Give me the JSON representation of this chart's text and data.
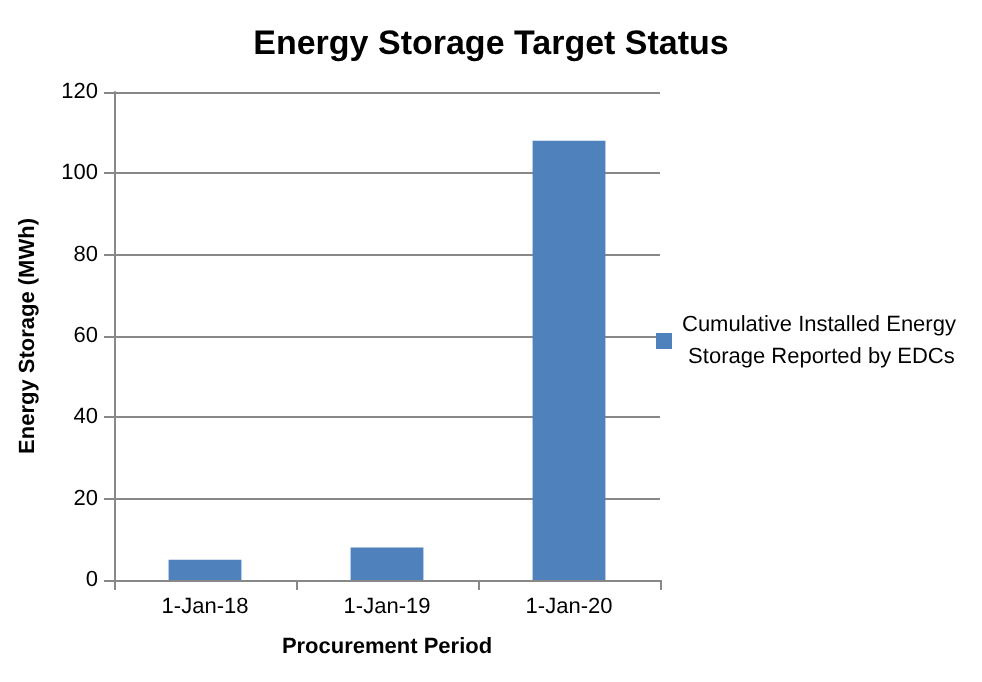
{
  "chart_data": {
    "type": "bar",
    "title": "Energy Storage Target Status",
    "xlabel": "Procurement Period",
    "ylabel": "Energy Storage (MWh)",
    "categories": [
      "1-Jan-18",
      "1-Jan-19",
      "1-Jan-20"
    ],
    "series": [
      {
        "name": "Cumulative Installed Energy Storage Reported by EDCs",
        "color": "#4f81bd",
        "values": [
          5,
          8,
          108
        ]
      }
    ],
    "ylim": [
      0,
      120
    ],
    "yticks": [
      0,
      20,
      40,
      60,
      80,
      100,
      120
    ],
    "grid": "y",
    "legend": "right"
  }
}
